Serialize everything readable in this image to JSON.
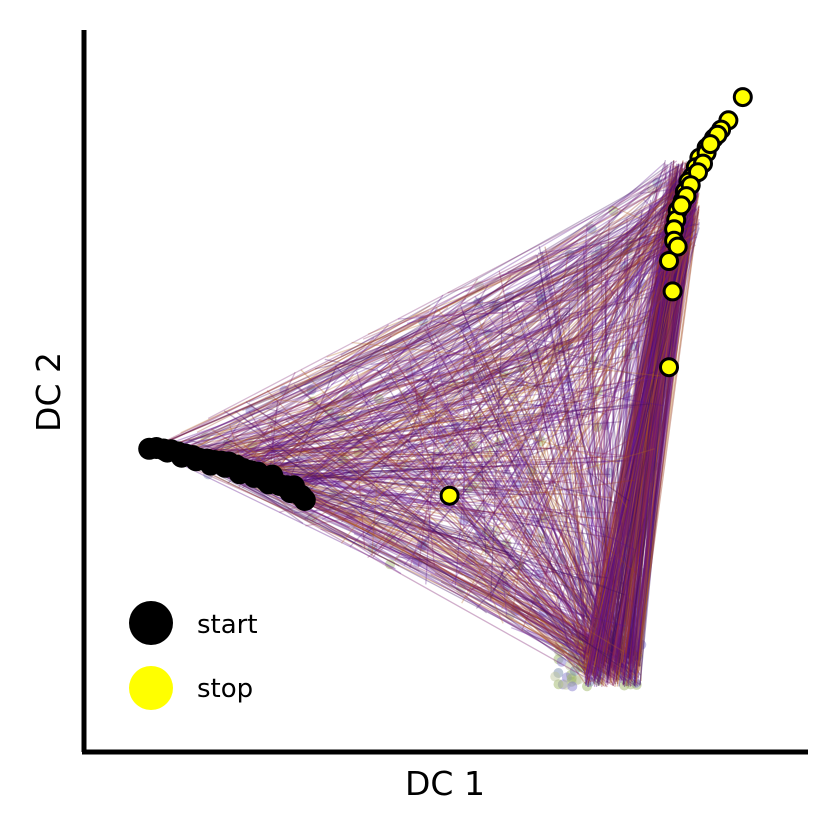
{
  "chart_data": {
    "type": "scatter",
    "xlabel": "DC 1",
    "ylabel": "DC 2",
    "xlim": [
      0,
      1
    ],
    "ylim": [
      0,
      1
    ],
    "ticks": "none",
    "grid": false,
    "legend_placement": "bottom-left",
    "legend": [
      {
        "label": "start",
        "color": "#000000"
      },
      {
        "label": "stop",
        "color": "#ffff00"
      }
    ],
    "trajectory_colors": [
      "#3b0a5e",
      "#4b0c6b",
      "#5a0f8a",
      "#7a1a6c",
      "#8b2252",
      "#9a3a1e",
      "#b5651d",
      "#6a1b9a"
    ],
    "background_point_colors": [
      "#7b8fb0",
      "#9fb86a",
      "#8a7fd0",
      "#c0c8a0"
    ],
    "branch_vertices": {
      "start": [
        0.09,
        0.42
      ],
      "bottom": [
        0.75,
        0.09
      ],
      "top": [
        0.85,
        0.82
      ]
    },
    "series": [
      {
        "name": "start",
        "color": "#000000",
        "points": [
          [
            0.09,
            0.42
          ],
          [
            0.1,
            0.421
          ],
          [
            0.11,
            0.419
          ],
          [
            0.12,
            0.418
          ],
          [
            0.13,
            0.415
          ],
          [
            0.14,
            0.412
          ],
          [
            0.15,
            0.41
          ],
          [
            0.16,
            0.406
          ],
          [
            0.17,
            0.405
          ],
          [
            0.18,
            0.403
          ],
          [
            0.19,
            0.402
          ],
          [
            0.2,
            0.401
          ],
          [
            0.21,
            0.397
          ],
          [
            0.22,
            0.392
          ],
          [
            0.23,
            0.389
          ],
          [
            0.24,
            0.387
          ],
          [
            0.25,
            0.377
          ],
          [
            0.26,
            0.383
          ],
          [
            0.27,
            0.37
          ],
          [
            0.28,
            0.368
          ],
          [
            0.29,
            0.368
          ],
          [
            0.3,
            0.355
          ],
          [
            0.115,
            0.416
          ],
          [
            0.135,
            0.409
          ],
          [
            0.155,
            0.404
          ],
          [
            0.175,
            0.398
          ],
          [
            0.195,
            0.395
          ],
          [
            0.215,
            0.386
          ],
          [
            0.235,
            0.381
          ],
          [
            0.255,
            0.372
          ],
          [
            0.285,
            0.36
          ],
          [
            0.305,
            0.349
          ]
        ]
      },
      {
        "name": "stop",
        "color": "#ffff00",
        "points": [
          [
            0.91,
            0.907
          ],
          [
            0.89,
            0.875
          ],
          [
            0.88,
            0.862
          ],
          [
            0.87,
            0.85
          ],
          [
            0.86,
            0.837
          ],
          [
            0.85,
            0.823
          ],
          [
            0.845,
            0.81
          ],
          [
            0.84,
            0.797
          ],
          [
            0.835,
            0.79
          ],
          [
            0.83,
            0.776
          ],
          [
            0.827,
            0.763
          ],
          [
            0.82,
            0.75
          ],
          [
            0.818,
            0.737
          ],
          [
            0.815,
            0.724
          ],
          [
            0.86,
            0.83
          ],
          [
            0.855,
            0.815
          ],
          [
            0.848,
            0.803
          ],
          [
            0.838,
            0.785
          ],
          [
            0.832,
            0.77
          ],
          [
            0.825,
            0.757
          ],
          [
            0.875,
            0.855
          ],
          [
            0.865,
            0.842
          ],
          [
            0.815,
            0.708
          ],
          [
            0.82,
            0.7
          ],
          [
            0.808,
            0.68
          ],
          [
            0.813,
            0.638
          ],
          [
            0.808,
            0.533
          ],
          [
            0.505,
            0.355
          ]
        ]
      }
    ]
  }
}
